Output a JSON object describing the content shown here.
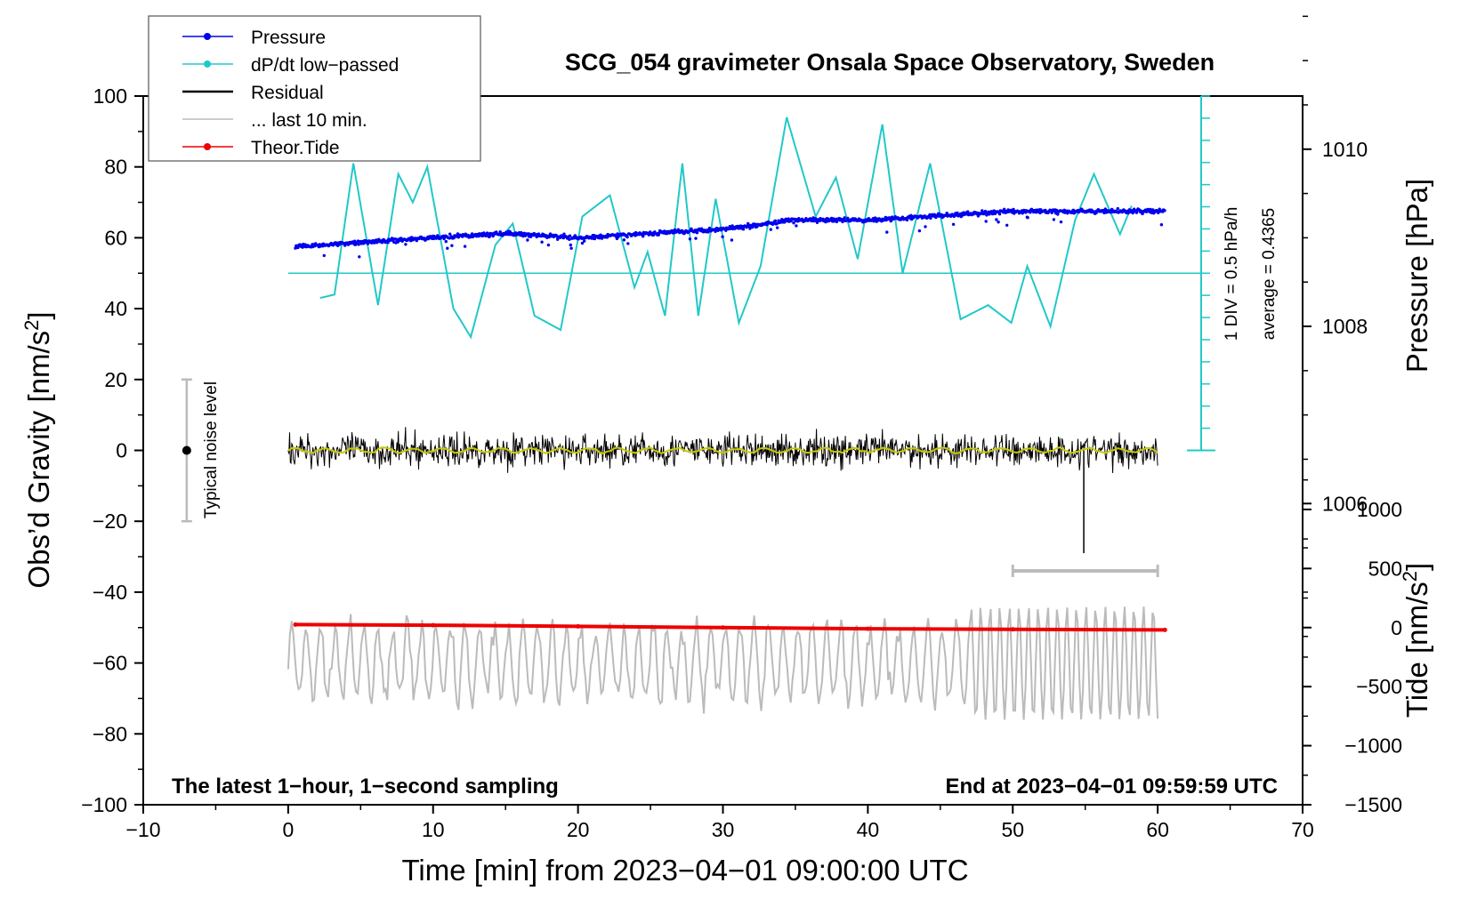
{
  "chart_data": {
    "type": "line",
    "title": "SCG_054 gravimeter Onsala Space Observatory, Sweden",
    "xlabel": "Time [min] from 2023−04−01 09:00:00 UTC",
    "ylabel_left": "Obs’d Gravity [nm/s",
    "ylabel_right_top": "Pressure [hPa]",
    "ylabel_right_bottom": "Tide [nm/s",
    "superscript": "2",
    "xlim": [
      -10,
      70
    ],
    "ylim_left": [
      -100,
      100
    ],
    "pressure_axis_range_hpa": [
      1004.0,
      1012.0
    ],
    "tide_axis_range": [
      -1500,
      1500
    ],
    "x_ticks": [
      -10,
      0,
      10,
      20,
      30,
      40,
      50,
      60,
      70
    ],
    "x_tick_labels": [
      "−10",
      "0",
      "10",
      "20",
      "30",
      "40",
      "50",
      "60",
      "70"
    ],
    "y_ticks_left": [
      -100,
      -80,
      -60,
      -40,
      -20,
      0,
      20,
      40,
      60,
      80,
      100
    ],
    "y_tick_labels_left": [
      "−100",
      "−80",
      "−60",
      "−40",
      "−20",
      "0",
      "20",
      "40",
      "60",
      "80",
      "100"
    ],
    "pressure_ticks": [
      1006,
      1008,
      1010
    ],
    "pressure_tick_labels": [
      "1006",
      "1008",
      "1010"
    ],
    "tide_ticks": [
      -1500,
      -1000,
      -500,
      0,
      500,
      1000
    ],
    "tide_tick_labels": [
      "−1500",
      "−1000",
      "−500",
      "0",
      "500",
      "1000"
    ],
    "legend": [
      {
        "label": "Pressure",
        "color": "#0000ee",
        "marker": true
      },
      {
        "label": "dP/dt low−passed",
        "color": "#22c8c8",
        "marker": true
      },
      {
        "label": "Residual",
        "color": "#000000",
        "marker": false
      },
      {
        "label": "... last 10 min.",
        "color": "#bbbbbb",
        "marker": false
      },
      {
        "label": "Theor.Tide",
        "color": "#ee0000",
        "marker": true
      }
    ],
    "annotations": {
      "bottom_left": "The latest 1−hour, 1−second sampling",
      "bottom_right": "End at 2023−04−01 09:59:59 UTC",
      "div_scale": "1 DIV = 0.5 hPa/h",
      "average": "average = 0.4365",
      "noise_label": "Typical noise level"
    },
    "noise_bar": {
      "x": -7,
      "center": 0,
      "low": -20,
      "high": 20
    },
    "last10_bar": {
      "x_start": 50,
      "x_end": 60,
      "y": -34
    },
    "dpdt_zero_line_gravity": 50,
    "dpdt_scale": {
      "zero": 0,
      "top": 100
    },
    "series": [
      {
        "name": "Pressure",
        "color": "#0000ee",
        "unit": "hPa",
        "x": [
          0.5,
          5,
          10,
          15,
          20,
          25,
          30,
          35,
          40,
          45,
          50,
          55,
          60.5
        ],
        "values": [
          1008.9,
          1008.95,
          1009.0,
          1009.05,
          1009.0,
          1009.05,
          1009.1,
          1009.2,
          1009.2,
          1009.25,
          1009.3,
          1009.3,
          1009.3
        ]
      },
      {
        "name": "dP/dt low−passed",
        "color": "#22c8c8",
        "unit": "nm/s² (plot scale)",
        "x": [
          2.2,
          3.2,
          4.5,
          6.2,
          7.6,
          8.6,
          9.6,
          11.4,
          12.6,
          14.3,
          15.5,
          17.0,
          18.8,
          20.3,
          22.2,
          23.9,
          24.8,
          26.0,
          27.2,
          28.3,
          29.5,
          31.1,
          32.6,
          34.4,
          36.4,
          37.8,
          39.3,
          41.0,
          42.4,
          44.3,
          46.4,
          48.3,
          49.9,
          51.0,
          52.6,
          54.3,
          55.6,
          57.4,
          58.3
        ],
        "values": [
          43,
          44,
          81,
          41,
          78,
          70,
          80,
          40,
          32,
          58,
          64,
          38,
          34,
          66,
          72,
          46,
          56,
          38,
          81,
          38,
          71,
          36,
          52,
          94,
          66,
          77,
          54,
          92,
          50,
          81,
          37,
          41,
          36,
          52,
          35,
          65,
          78,
          61,
          70
        ]
      },
      {
        "name": "Residual",
        "color": "#000000",
        "x_range": [
          0,
          60
        ],
        "values_range": [
          -29,
          22
        ]
      },
      {
        "name": "Residual smoothed",
        "color": "#c8c800",
        "x_range": [
          0,
          60
        ],
        "values_range": [
          -2,
          2
        ]
      },
      {
        "name": "... last 10 min.",
        "color": "#bbbbbb",
        "x_range": [
          0,
          60
        ],
        "values_range": [
          -91,
          -40
        ]
      },
      {
        "name": "Theor.Tide",
        "color": "#ee0000",
        "unit": "nm/s²",
        "x": [
          0.5,
          10,
          20,
          30,
          40,
          50,
          60.5
        ],
        "values": [
          25,
          20,
          10,
          0,
          -10,
          -15,
          -20
        ]
      }
    ]
  }
}
